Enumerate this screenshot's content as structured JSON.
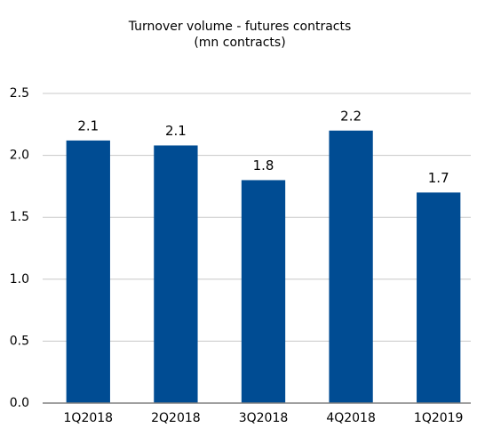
{
  "chart_data": {
    "type": "bar",
    "title": "Turnover volume - futures contracts",
    "subtitle": "(mn contracts)",
    "categories": [
      "1Q2018",
      "2Q2018",
      "3Q2018",
      "4Q2018",
      "1Q2019"
    ],
    "values": [
      2.12,
      2.08,
      1.8,
      2.2,
      1.7
    ],
    "value_labels": [
      "2.1",
      "2.1",
      "1.8",
      "2.2",
      "1.7"
    ],
    "color": "#004c93",
    "ylim": [
      0,
      2.5
    ],
    "yticks": [
      {
        "value": 0,
        "label": "0.0"
      },
      0.5,
      {
        "value": 1,
        "label": "1.0"
      },
      1.5,
      {
        "value": 2,
        "label": "2.0"
      },
      2.5
    ],
    "grid": true
  }
}
